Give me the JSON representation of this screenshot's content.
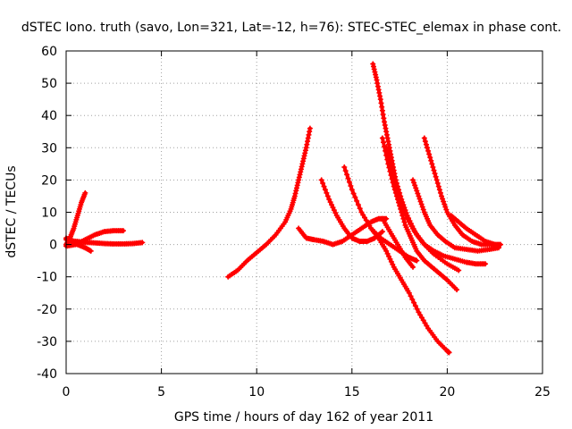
{
  "chart_data": {
    "type": "scatter",
    "title": "dSTEC Iono. truth (savo, Lon=321, Lat=-12, h=76): STEC-STEC_elemax in phase cont.",
    "xlabel": "GPS time / hours of day 162 of year 2011",
    "ylabel": "dSTEC  / TECUs",
    "xlim": [
      0,
      25
    ],
    "ylim": [
      -40,
      60
    ],
    "xticks": [
      0,
      5,
      10,
      15,
      20,
      25
    ],
    "yticks": [
      -40,
      -30,
      -20,
      -10,
      0,
      10,
      20,
      30,
      40,
      50,
      60
    ],
    "grid": true,
    "marker": "+",
    "series_color": "#ff0000",
    "series": [
      {
        "x": [
          0.0,
          0.2,
          0.4,
          0.6,
          0.8,
          1.0
        ],
        "y": [
          0,
          2,
          5,
          9,
          13,
          16
        ]
      },
      {
        "x": [
          0.0,
          0.3,
          0.6,
          1.0,
          1.3
        ],
        "y": [
          2,
          1,
          0,
          -1,
          -2
        ]
      },
      {
        "x": [
          0.0,
          0.5,
          1.0,
          1.5,
          2.0,
          2.5,
          3.0
        ],
        "y": [
          -0.5,
          0,
          1.5,
          3,
          4,
          4.3,
          4.3
        ]
      },
      {
        "x": [
          0.0,
          0.5,
          1.0,
          1.5,
          2.0,
          2.5,
          3.0,
          3.5,
          4.0
        ],
        "y": [
          1.5,
          1,
          0.7,
          0.5,
          0.3,
          0.2,
          0.2,
          0.3,
          0.6
        ]
      },
      {
        "x": [
          8.5,
          9.0,
          9.5,
          10.0,
          10.5,
          11.0,
          11.5,
          11.8,
          12.0,
          12.2,
          12.4,
          12.6,
          12.8
        ],
        "y": [
          -10,
          -8,
          -5,
          -2.5,
          0,
          3,
          7,
          11,
          15,
          20,
          25,
          30,
          36
        ]
      },
      {
        "x": [
          12.2,
          12.6,
          13.0,
          13.5,
          14.0,
          14.5,
          15.0,
          15.5,
          16.0,
          16.4,
          16.8
        ],
        "y": [
          5,
          2,
          1.5,
          1,
          0,
          1,
          3,
          5,
          7,
          8,
          8
        ]
      },
      {
        "x": [
          13.4,
          13.8,
          14.2,
          14.6,
          15.0,
          15.4,
          15.8,
          16.2,
          16.6
        ],
        "y": [
          20,
          14,
          9,
          5,
          2,
          1,
          1,
          2,
          4
        ]
      },
      {
        "x": [
          14.6,
          15.0,
          15.5,
          16.0,
          16.5,
          17.0,
          17.5,
          18.0,
          18.4
        ],
        "y": [
          24,
          17,
          10,
          5,
          2,
          0,
          -2,
          -4,
          -5
        ]
      },
      {
        "x": [
          16.0,
          16.4,
          16.8,
          17.2,
          17.6,
          18.0,
          18.5,
          19.0,
          19.5,
          20.0,
          20.1
        ],
        "y": [
          5,
          2,
          -2,
          -7,
          -11,
          -15,
          -21,
          -26,
          -30,
          -33,
          -33.5
        ]
      },
      {
        "x": [
          16.1,
          16.3,
          16.5,
          16.7,
          16.9,
          17.1,
          17.3,
          17.6,
          17.9,
          18.3,
          18.8,
          19.3,
          20.0,
          20.6
        ],
        "y": [
          56,
          51,
          45,
          38,
          32,
          26,
          20,
          14,
          9,
          4,
          0,
          -3,
          -6,
          -8
        ]
      },
      {
        "x": [
          16.6,
          16.9,
          17.2,
          17.5,
          17.8,
          18.1,
          18.4,
          18.8,
          19.2,
          19.6,
          20.0,
          20.5
        ],
        "y": [
          33,
          25,
          18,
          12,
          6,
          2,
          -2,
          -5,
          -7,
          -9,
          -11,
          -14
        ]
      },
      {
        "x": [
          16.8,
          17.1,
          17.4,
          17.7,
          18.0,
          18.4,
          18.8,
          19.3,
          19.8,
          20.4,
          21.0,
          21.5,
          22.0
        ],
        "y": [
          30,
          23,
          17,
          11,
          7,
          3,
          0,
          -2,
          -3.5,
          -4.5,
          -5.5,
          -6,
          -6
        ]
      },
      {
        "x": [
          18.2,
          18.5,
          18.8,
          19.1,
          19.5,
          19.9,
          20.4,
          21.0,
          21.6,
          22.2,
          22.7
        ],
        "y": [
          20,
          15,
          10,
          6,
          3,
          1,
          -1,
          -1.5,
          -2,
          -1.5,
          -1
        ]
      },
      {
        "x": [
          18.8,
          19.1,
          19.4,
          19.7,
          20.0,
          20.4,
          20.8,
          21.3,
          21.8,
          22.4,
          22.8
        ],
        "y": [
          33,
          27,
          21,
          15,
          10,
          6,
          3,
          1,
          0,
          0,
          0
        ]
      },
      {
        "x": [
          16.6,
          17.0,
          17.4,
          17.8,
          18.2
        ],
        "y": [
          8,
          4,
          0,
          -4,
          -7
        ]
      },
      {
        "x": [
          20.2,
          20.6,
          21.0,
          21.5,
          22.0,
          22.5
        ],
        "y": [
          9,
          7,
          5,
          3,
          1,
          0
        ]
      }
    ]
  }
}
